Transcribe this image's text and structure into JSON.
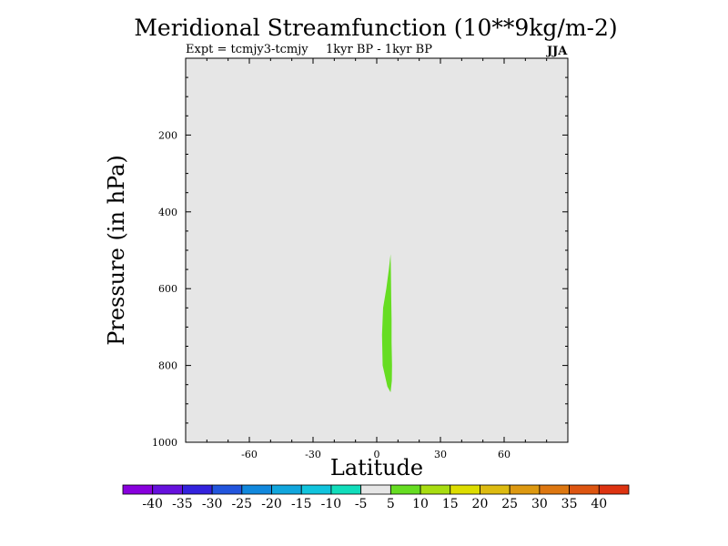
{
  "header": {
    "title": "Meridional Streamfunction (10**9kg/m-2)",
    "experiment": "Expt = tcmjy3-tcmjy",
    "period": "1kyr BP - 1kyr BP",
    "season": "JJA"
  },
  "chart_data": {
    "type": "contour",
    "title": "Meridional Streamfunction (10**9kg/m-2)",
    "xlabel": "Latitude",
    "ylabel": "Pressure (in hPa)",
    "xlim": [
      -90,
      90
    ],
    "ylim": [
      1000,
      0
    ],
    "xticks": [
      -60,
      -30,
      0,
      30,
      60
    ],
    "xtick_labels": [
      "-60",
      "-30",
      "0",
      "30",
      "60"
    ],
    "yticks": [
      200,
      400,
      600,
      800,
      1000
    ],
    "ytick_labels": [
      "200",
      "400",
      "600",
      "800",
      "1000"
    ],
    "background_band": "-5 to 5",
    "regions": [
      {
        "band": "5 to 10",
        "color": "#66dd22",
        "outline": [
          [
            6.5,
            510
          ],
          [
            6.7,
            560
          ],
          [
            6.8,
            620
          ],
          [
            7.0,
            680
          ],
          [
            7.0,
            740
          ],
          [
            7.2,
            800
          ],
          [
            7.1,
            840
          ],
          [
            6.5,
            870
          ],
          [
            5.0,
            855
          ],
          [
            2.8,
            800
          ],
          [
            2.5,
            720
          ],
          [
            3.0,
            650
          ],
          [
            4.5,
            600
          ],
          [
            5.7,
            550
          ]
        ]
      }
    ],
    "colorbar": {
      "colors": [
        "#8800dd",
        "#6611dd",
        "#3322dd",
        "#2255dd",
        "#1188dd",
        "#11a6dd",
        "#11c4dd",
        "#11ddbb",
        "#e6e6e6",
        "#66dd22",
        "#a8dd11",
        "#dddd00",
        "#ddbb11",
        "#dd9911",
        "#dd7711",
        "#dd5511",
        "#dd3311"
      ],
      "labels": [
        "-40",
        "-35",
        "-30",
        "-25",
        "-20",
        "-15",
        "-10",
        "-5",
        "5",
        "10",
        "15",
        "20",
        "25",
        "30",
        "35",
        "40"
      ]
    }
  }
}
